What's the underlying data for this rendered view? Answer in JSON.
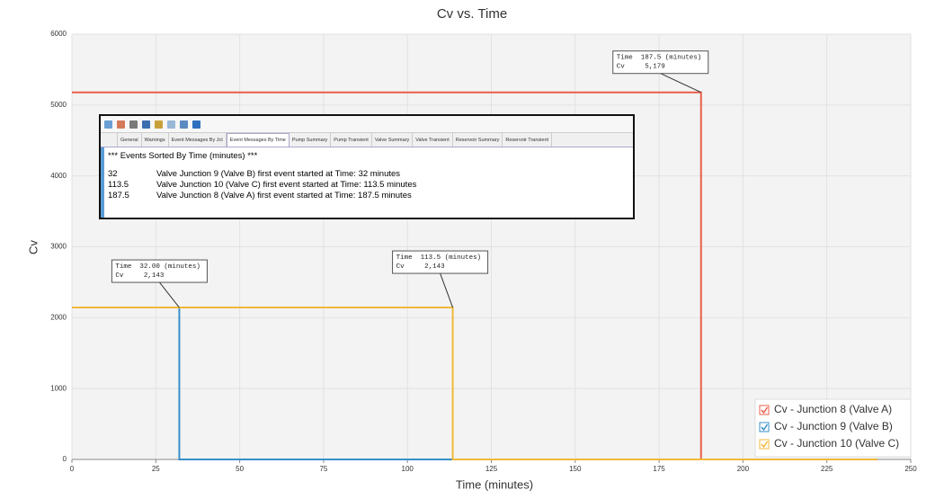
{
  "chart_data": {
    "type": "line",
    "title": "Cv vs. Time",
    "x_label": "Time (minutes)",
    "y_label": "Cv",
    "xlim": [
      0,
      250
    ],
    "xticks": [
      0,
      25,
      50,
      75,
      100,
      125,
      150,
      175,
      200,
      225,
      250
    ],
    "ylim": [
      0,
      6000
    ],
    "yticks": [
      0,
      1000,
      2000,
      3000,
      4000,
      5000,
      6000
    ],
    "grid": true,
    "legend": "lower right",
    "series": [
      {
        "name": "Cv - Junction 8 (Valve A)",
        "color": "#e8604a",
        "x": [
          0,
          187.5,
          187.5,
          240
        ],
        "values": [
          5179,
          5179,
          0,
          0
        ]
      },
      {
        "name": "Cv - Junction 9 (Valve B)",
        "color": "#3a8fc8",
        "x": [
          0,
          32,
          32,
          240
        ],
        "values": [
          2143,
          2143,
          0,
          0
        ]
      },
      {
        "name": "Cv - Junction 10 (Valve C)",
        "color": "#f0b93a",
        "x": [
          0,
          113.5,
          113.5,
          240
        ],
        "values": [
          2143,
          2143,
          0,
          0
        ]
      }
    ],
    "annotations": [
      {
        "lines": [
          "Time  187.5 (minutes)",
          "Cv     5,179"
        ]
      },
      {
        "lines": [
          "Time  32.00 (minutes)",
          "Cv     2,143"
        ]
      },
      {
        "lines": [
          "Time  113.5 (minutes)",
          "Cv     2,143"
        ]
      }
    ]
  },
  "event_panel": {
    "tabs": [
      "General",
      "Warnings",
      "Event Messages By Jct",
      "Event Messages By Time",
      "Pump Summary",
      "Pump Transient",
      "Valve Summary",
      "Valve Transient",
      "Reservoir Summary",
      "Reservoir Transient"
    ],
    "active_tab": "Event Messages By Time",
    "heading": "*** Events Sorted By Time (minutes) ***",
    "rows": [
      [
        "32",
        "Valve Junction 9 (Valve B) first event started at Time: 32 minutes"
      ],
      [
        "113.5",
        "Valve Junction 10 (Valve C) first event started at Time: 113.5 minutes"
      ],
      [
        "187.5",
        "Valve Junction 8 (Valve A) first event started at Time: 187.5 minutes"
      ]
    ]
  }
}
